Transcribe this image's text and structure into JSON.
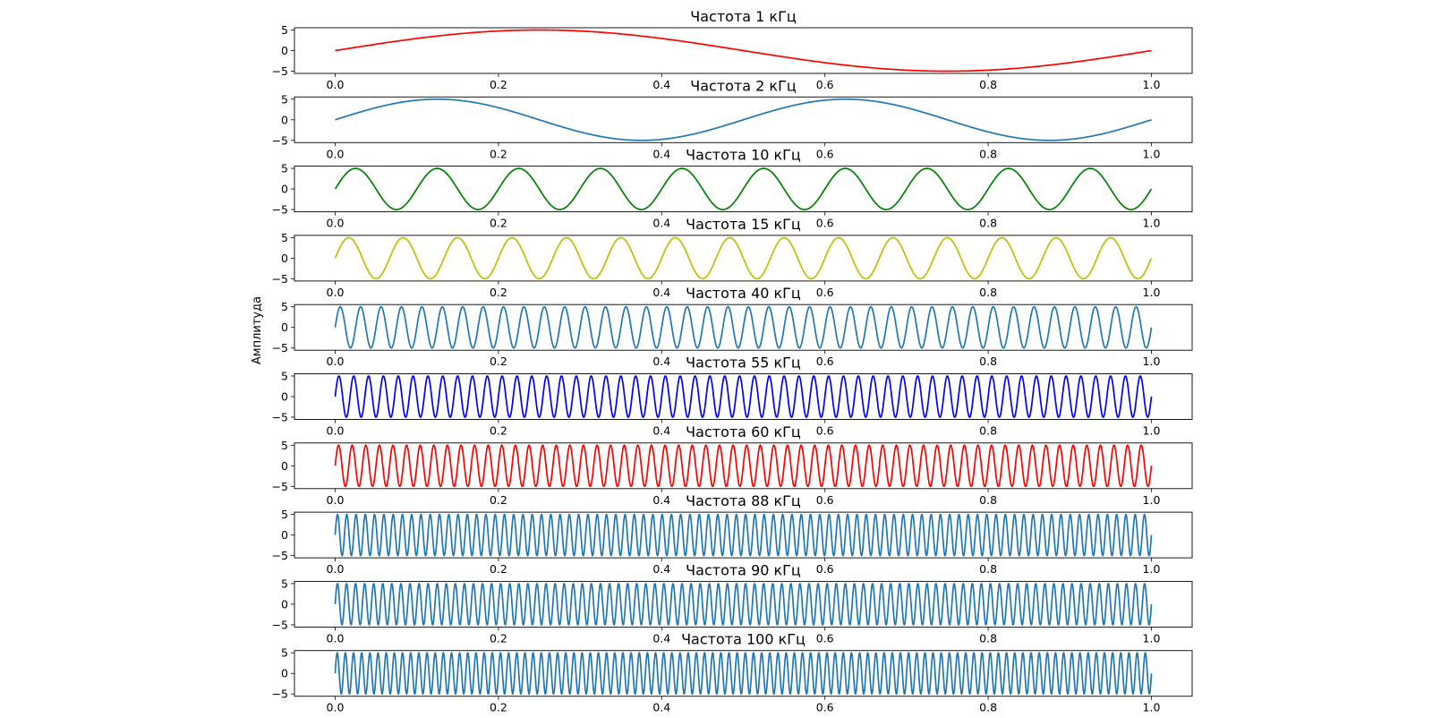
{
  "figure": {
    "ylabel": "Амплитуда"
  },
  "chart_data": [
    {
      "type": "line",
      "title": "Частота 1 кГц",
      "frequency": 1,
      "amplitude": 5,
      "color": "#ff0000",
      "xlim": [
        0,
        1
      ],
      "ylim": [
        -5,
        5
      ],
      "x_ticks": [
        "0.0",
        "0.2",
        "0.4",
        "0.6",
        "0.8",
        "1.0"
      ],
      "y_ticks": [
        "5",
        "0",
        "−5"
      ],
      "series": [
        {
          "formula": "5·sin(2π·1·t)"
        }
      ]
    },
    {
      "type": "line",
      "title": "Частота 2 кГц",
      "frequency": 2,
      "amplitude": 5,
      "color": "#1f77b4",
      "xlim": [
        0,
        1
      ],
      "ylim": [
        -5,
        5
      ],
      "x_ticks": [
        "0.0",
        "0.2",
        "0.4",
        "0.6",
        "0.8",
        "1.0"
      ],
      "y_ticks": [
        "5",
        "0",
        "−5"
      ],
      "series": [
        {
          "formula": "5·sin(2π·2·t)"
        }
      ]
    },
    {
      "type": "line",
      "title": "Частота 10 кГц",
      "frequency": 10,
      "amplitude": 5,
      "color": "#008000",
      "xlim": [
        0,
        1
      ],
      "ylim": [
        -5,
        5
      ],
      "x_ticks": [
        "0.0",
        "0.2",
        "0.4",
        "0.6",
        "0.8",
        "1.0"
      ],
      "y_ticks": [
        "5",
        "0",
        "−5"
      ],
      "series": [
        {
          "formula": "5·sin(2π·10·t)"
        }
      ]
    },
    {
      "type": "line",
      "title": "Частота 15 кГц",
      "frequency": 15,
      "amplitude": 5,
      "color": "#bfbf00",
      "xlim": [
        0,
        1
      ],
      "ylim": [
        -5,
        5
      ],
      "x_ticks": [
        "0.0",
        "0.2",
        "0.4",
        "0.6",
        "0.8",
        "1.0"
      ],
      "y_ticks": [
        "5",
        "0",
        "−5"
      ],
      "series": [
        {
          "formula": "5·sin(2π·15·t)"
        }
      ]
    },
    {
      "type": "line",
      "title": "Частота 40 кГц",
      "frequency": 40,
      "amplitude": 5,
      "color": "#1f77b4",
      "xlim": [
        0,
        1
      ],
      "ylim": [
        -5,
        5
      ],
      "x_ticks": [
        "0.0",
        "0.2",
        "0.4",
        "0.6",
        "0.8",
        "1.0"
      ],
      "y_ticks": [
        "5",
        "0",
        "−5"
      ],
      "series": [
        {
          "formula": "5·sin(2π·40·t)"
        }
      ]
    },
    {
      "type": "line",
      "title": "Частота 55 кГц",
      "frequency": 55,
      "amplitude": 5,
      "color": "#0000ff",
      "xlim": [
        0,
        1
      ],
      "ylim": [
        -5,
        5
      ],
      "x_ticks": [
        "0.0",
        "0.2",
        "0.4",
        "0.6",
        "0.8",
        "1.0"
      ],
      "y_ticks": [
        "5",
        "0",
        "−5"
      ],
      "series": [
        {
          "formula": "5·sin(2π·55·t)"
        }
      ]
    },
    {
      "type": "line",
      "title": "Частота 60 кГц",
      "frequency": 60,
      "amplitude": 5,
      "color": "#ff0000",
      "xlim": [
        0,
        1
      ],
      "ylim": [
        -5,
        5
      ],
      "x_ticks": [
        "0.0",
        "0.2",
        "0.4",
        "0.6",
        "0.8",
        "1.0"
      ],
      "y_ticks": [
        "5",
        "0",
        "−5"
      ],
      "series": [
        {
          "formula": "5·sin(2π·60·t)"
        }
      ]
    },
    {
      "type": "line",
      "title": "Частота 88 кГц",
      "frequency": 88,
      "amplitude": 5,
      "color": "#1f77b4",
      "xlim": [
        0,
        1
      ],
      "ylim": [
        -5,
        5
      ],
      "x_ticks": [
        "0.0",
        "0.2",
        "0.4",
        "0.6",
        "0.8",
        "1.0"
      ],
      "y_ticks": [
        "5",
        "0",
        "−5"
      ],
      "series": [
        {
          "formula": "5·sin(2π·88·t)"
        }
      ]
    },
    {
      "type": "line",
      "title": "Частота 90 кГц",
      "frequency": 90,
      "amplitude": 5,
      "color": "#1f77b4",
      "xlim": [
        0,
        1
      ],
      "ylim": [
        -5,
        5
      ],
      "x_ticks": [
        "0.0",
        "0.2",
        "0.4",
        "0.6",
        "0.8",
        "1.0"
      ],
      "y_ticks": [
        "5",
        "0",
        "−5"
      ],
      "series": [
        {
          "formula": "5·sin(2π·90·t)"
        }
      ]
    },
    {
      "type": "line",
      "title": "Частота 100 кГц",
      "frequency": 100,
      "amplitude": 5,
      "color": "#1f77b4",
      "xlim": [
        0,
        1
      ],
      "ylim": [
        -5,
        5
      ],
      "x_ticks": [
        "0.0",
        "0.2",
        "0.4",
        "0.6",
        "0.8",
        "1.0"
      ],
      "y_ticks": [
        "5",
        "0",
        "−5"
      ],
      "series": [
        {
          "formula": "5·sin(2π·100·t)"
        }
      ]
    }
  ]
}
